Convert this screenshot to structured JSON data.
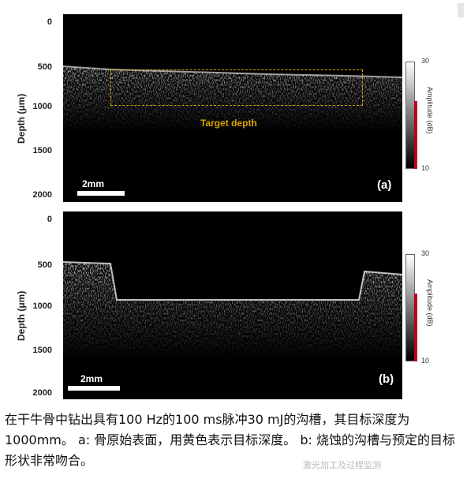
{
  "figure": {
    "panel_a": {
      "y_ticks": [
        "0",
        "500",
        "1000",
        "1500",
        "2000"
      ],
      "y_label": "Depth (μm)",
      "scalebar_label": "2mm",
      "panel_label": "(a)",
      "target_label": "Target depth",
      "colorbar": {
        "max": "30",
        "min": "10",
        "title": "Amplitude (dB)"
      }
    },
    "panel_b": {
      "y_ticks": [
        "0",
        "500",
        "1000",
        "1500",
        "2000"
      ],
      "y_label": "Depth (μm)",
      "scalebar_label": "2mm",
      "panel_label": "(b)",
      "colorbar": {
        "max": "30",
        "min": "10",
        "title": "Amplitude (dB)"
      }
    },
    "colors": {
      "target": "#d9a400",
      "colorbar_edge": "#c0001a"
    }
  },
  "caption": "在干牛骨中钻出具有100 Hz的100 ms脉冲30 mJ的沟槽，其目标深度为1000mm。 a: 骨原始表面，用黄色表示目标深度。 b: 烧蚀的沟槽与预定的目标形状非常吻合。",
  "watermark": "激光加工及过程监测"
}
